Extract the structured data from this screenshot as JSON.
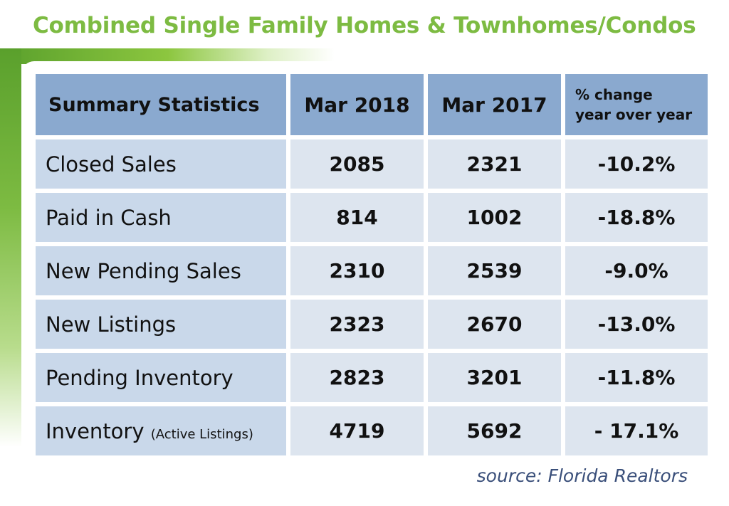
{
  "title": "Combined Single Family Homes & Townhomes/Condos",
  "headers": {
    "label": "Summary Statistics",
    "col1": "Mar 2018",
    "col2": "Mar 2017",
    "col3_line1": "% change",
    "col3_line2": "year over year"
  },
  "rows": [
    {
      "label": "Closed Sales",
      "sub": "",
      "mar2018": "2085",
      "mar2017": "2321",
      "change": "-10.2%"
    },
    {
      "label": "Paid in Cash",
      "sub": "",
      "mar2018": "814",
      "mar2017": "1002",
      "change": "-18.8%"
    },
    {
      "label": "New Pending Sales",
      "sub": "",
      "mar2018": "2310",
      "mar2017": "2539",
      "change": "-9.0%"
    },
    {
      "label": "New Listings",
      "sub": "",
      "mar2018": "2323",
      "mar2017": "2670",
      "change": "-13.0%"
    },
    {
      "label": "Pending Inventory",
      "sub": "",
      "mar2018": "2823",
      "mar2017": "3201",
      "change": "-11.8%"
    },
    {
      "label": "Inventory",
      "sub": "(Active Listings)",
      "mar2018": "4719",
      "mar2017": "5692",
      "change": "- 17.1%"
    }
  ],
  "source": "source: Florida Realtors",
  "colors": {
    "title": "#7dbb42",
    "header_bg": "#8aa9cf",
    "label_bg": "#c9d8ea",
    "value_bg": "#dde5ef",
    "source_text": "#3a4f7a"
  }
}
